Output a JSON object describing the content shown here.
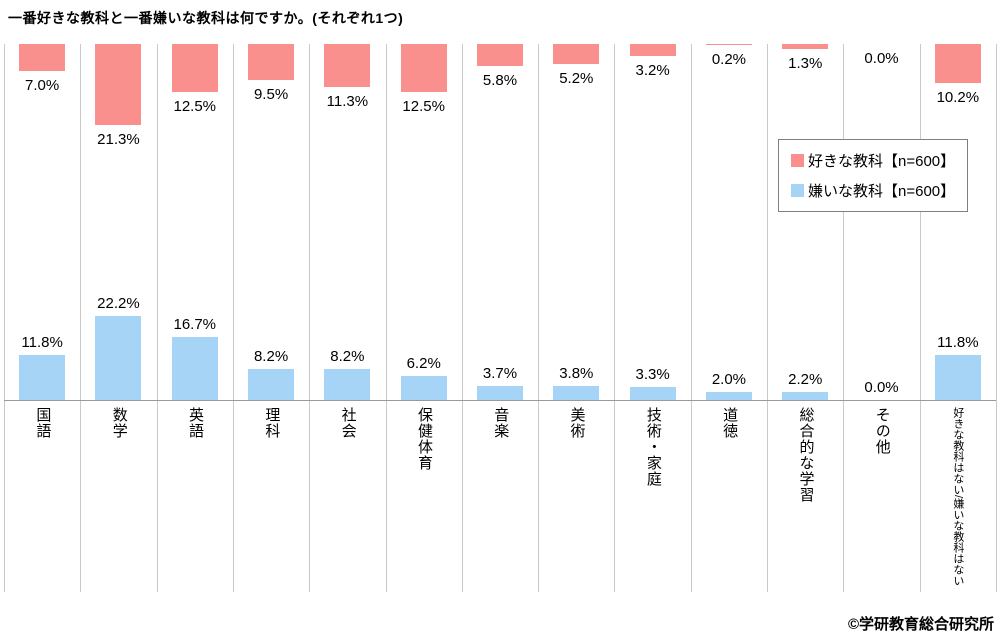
{
  "title": "一番好きな教科と一番嫌いな教科は何ですか。(それぞれ1つ)",
  "footer": "©学研教育総合研究所",
  "legend": [
    {
      "label": "好きな教科【n=600】",
      "color": "#f9908e"
    },
    {
      "label": "嫌いな教科【n=600】",
      "color": "#a6d4f6"
    }
  ],
  "chart_data": {
    "type": "bar",
    "orientation": "vertical-mirrored",
    "description": "Pink bars (favorite subject) hang down from the top edge of the plot; blue bars (disliked subject) rise from the baseline. Value labels sit at the bar ends. Category labels are written vertically below the baseline.",
    "categories": [
      "国語",
      "数学",
      "英語",
      "理科",
      "社会",
      "保健体育",
      "音楽",
      "美術",
      "技術・家庭",
      "道徳",
      "総合的な学習",
      "その他",
      "好きな教科はない/嫌いな教科はない"
    ],
    "series": [
      {
        "name": "好きな教科【n=600】",
        "color": "#f9908e",
        "values": [
          7.0,
          21.3,
          12.5,
          9.5,
          11.3,
          12.5,
          5.8,
          5.2,
          3.2,
          0.2,
          1.3,
          0.0,
          10.2
        ],
        "labels": [
          "7.0%",
          "21.3%",
          "12.5%",
          "9.5%",
          "11.3%",
          "12.5%",
          "5.8%",
          "5.2%",
          "3.2%",
          "0.2%",
          "1.3%",
          "0.0%",
          "10.2%"
        ]
      },
      {
        "name": "嫌いな教科【n=600】",
        "color": "#a6d4f6",
        "values": [
          11.8,
          22.2,
          16.7,
          8.2,
          8.2,
          6.2,
          3.7,
          3.8,
          3.3,
          2.0,
          2.2,
          0.0,
          11.8
        ],
        "labels": [
          "11.8%",
          "22.2%",
          "16.7%",
          "8.2%",
          "8.2%",
          "6.2%",
          "3.7%",
          "3.8%",
          "3.3%",
          "2.0%",
          "2.2%",
          "0.0%",
          "11.8%"
        ]
      }
    ],
    "value_suffix": "%",
    "ylim": [
      0,
      25
    ],
    "grid": "vertical column separators, light gray",
    "legend_position": "inside-right-upper"
  }
}
